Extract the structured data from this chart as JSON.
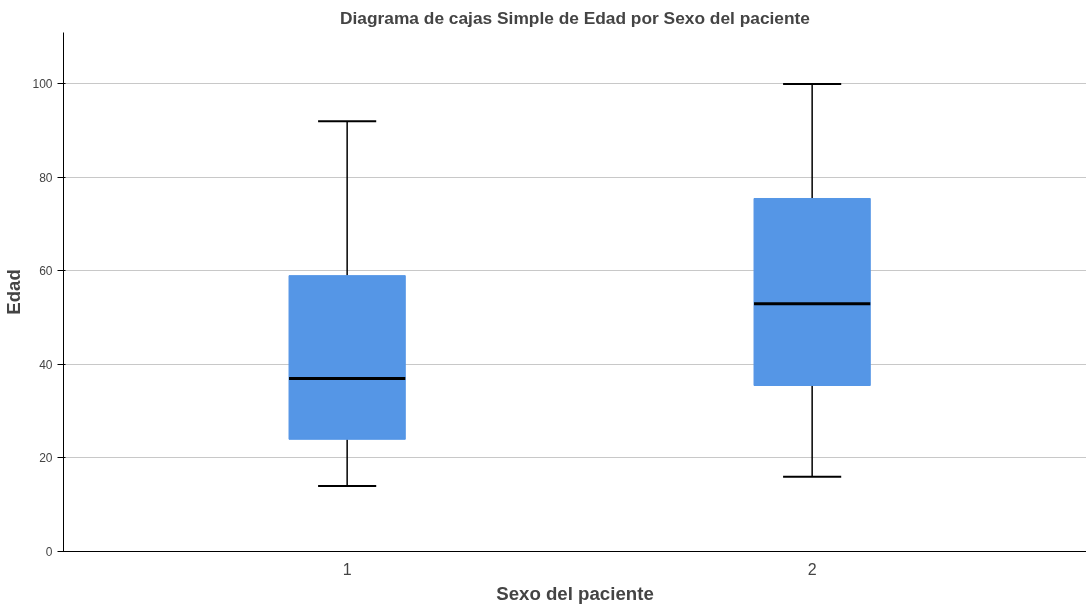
{
  "chart_data": {
    "type": "box",
    "title": "Diagrama de cajas Simple de Edad por Sexo del paciente",
    "xlabel": "Sexo del paciente",
    "ylabel": "Edad",
    "categories": [
      "1",
      "2"
    ],
    "boxes": [
      {
        "low": 14,
        "q1": 24,
        "median": 37,
        "q3": 59,
        "high": 92
      },
      {
        "low": 16,
        "q1": 35.5,
        "median": 53,
        "q3": 75.5,
        "high": 100
      }
    ],
    "color": "#5596e6",
    "ylim": [
      0,
      111
    ],
    "yticks": [
      0,
      20,
      40,
      60,
      80,
      100
    ],
    "grid": "y"
  }
}
